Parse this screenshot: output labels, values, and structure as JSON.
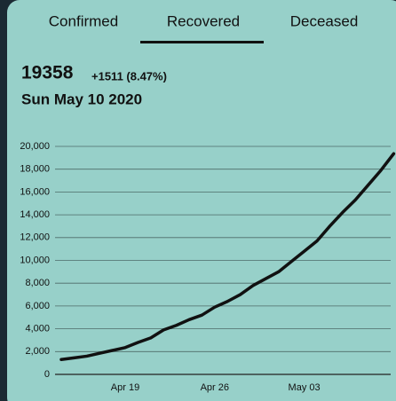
{
  "tabs": [
    "Confirmed",
    "Recovered",
    "Deceased"
  ],
  "header": {
    "value": "19358",
    "change": "+1511 (8.47%)",
    "date": "Sun May 10 2020"
  },
  "chart_data": {
    "type": "line",
    "categories": [
      null,
      null,
      null,
      null,
      null,
      "Apr 19",
      null,
      null,
      null,
      null,
      null,
      null,
      "Apr 26",
      null,
      null,
      null,
      null,
      null,
      null,
      "May 03",
      null,
      null,
      null,
      null,
      null,
      null,
      null
    ],
    "series": [
      {
        "name": "Recovered",
        "color": "#111111",
        "values": [
          1300,
          1450,
          1600,
          1850,
          2100,
          2350,
          2800,
          3200,
          3900,
          4300,
          4800,
          5200,
          5900,
          6400,
          7000,
          7800,
          8400,
          9000,
          9900,
          10800,
          11700,
          13000,
          14200,
          15300,
          16600,
          17900,
          19358
        ]
      }
    ],
    "ylim": [
      0,
      20000
    ],
    "yticks": [
      0,
      {
        "value": 2000,
        "label": "2,000"
      },
      {
        "value": 4000,
        "label": "4,000"
      },
      {
        "value": 6000,
        "label": "6,000"
      },
      {
        "value": 8000,
        "label": "8,000"
      },
      {
        "value": 10000,
        "label": "10,000"
      },
      {
        "value": 12000,
        "label": "12,000"
      },
      {
        "value": 14000,
        "label": "14,000"
      },
      {
        "value": 16000,
        "label": "16,000"
      },
      {
        "value": 18000,
        "label": "18,000"
      },
      {
        "value": 20000,
        "label": "20,000"
      }
    ],
    "grid": true
  }
}
